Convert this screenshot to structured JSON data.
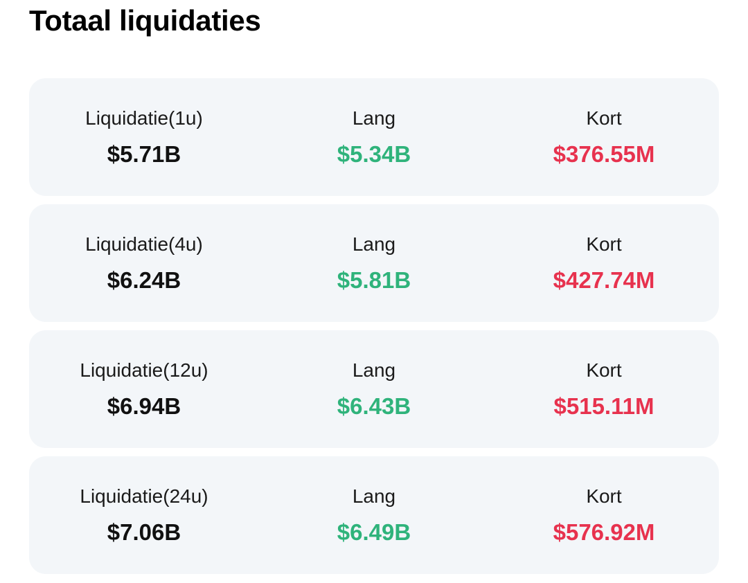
{
  "header": {
    "title": "Totaal liquidaties"
  },
  "colors": {
    "long": "#2fb37b",
    "short": "#e7324e",
    "card_background": "#f3f6f9"
  },
  "rows": [
    {
      "total_label": "Liquidatie(1u)",
      "total_value": "$5.71B",
      "long_label": "Lang",
      "long_value": "$5.34B",
      "short_label": "Kort",
      "short_value": "$376.55M"
    },
    {
      "total_label": "Liquidatie(4u)",
      "total_value": "$6.24B",
      "long_label": "Lang",
      "long_value": "$5.81B",
      "short_label": "Kort",
      "short_value": "$427.74M"
    },
    {
      "total_label": "Liquidatie(12u)",
      "total_value": "$6.94B",
      "long_label": "Lang",
      "long_value": "$6.43B",
      "short_label": "Kort",
      "short_value": "$515.11M"
    },
    {
      "total_label": "Liquidatie(24u)",
      "total_value": "$7.06B",
      "long_label": "Lang",
      "long_value": "$6.49B",
      "short_label": "Kort",
      "short_value": "$576.92M"
    }
  ]
}
